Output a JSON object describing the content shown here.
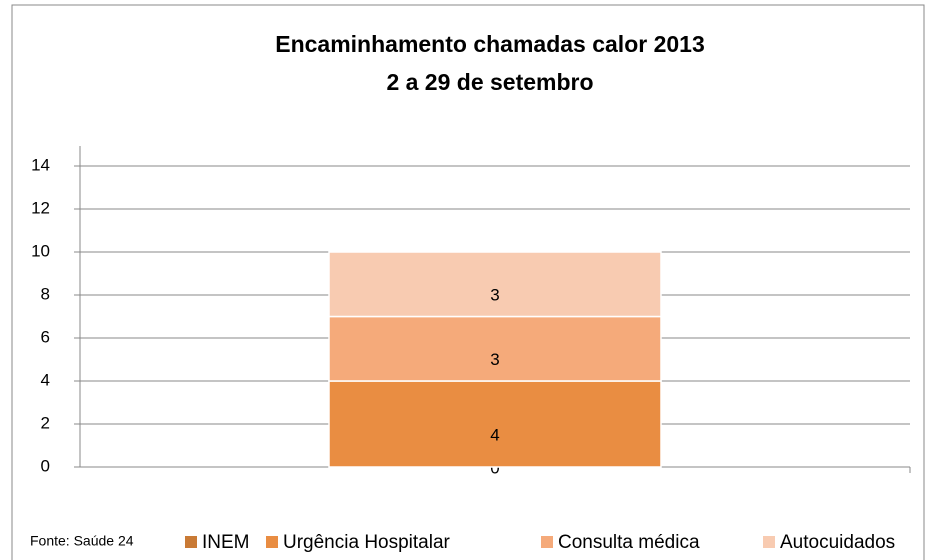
{
  "chart_data": {
    "type": "stacked_bar",
    "title": "Encaminhamento chamadas calor 2013",
    "subtitle": "2 a 29 de setembro",
    "source": "Fonte: Saúde 24",
    "categories": [
      null
    ],
    "series": [
      {
        "name": "INEM",
        "color": "#c97a35",
        "values": [
          0
        ]
      },
      {
        "name": "Urgência Hospitalar",
        "color": "#e98d42",
        "values": [
          4
        ]
      },
      {
        "name": "Consulta médica",
        "color": "#f5aa7a",
        "values": [
          3
        ]
      },
      {
        "name": "Autocuidados",
        "color": "#f8cbb1",
        "values": [
          3
        ]
      }
    ],
    "ylim": [
      0,
      14
    ],
    "yticks": [
      0,
      2,
      4,
      6,
      8,
      10,
      12,
      14
    ],
    "grid": true,
    "legend": "bottom"
  }
}
